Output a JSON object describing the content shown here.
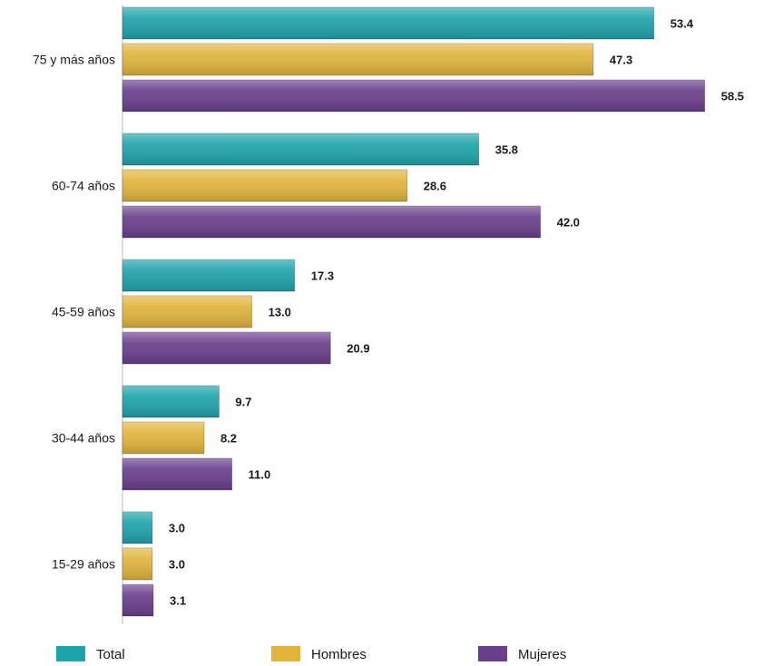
{
  "chart_data": {
    "type": "bar",
    "orientation": "horizontal",
    "categories": [
      "75 y más años",
      "60-74 años",
      "45-59 años",
      "30-44 años",
      "15-29 años"
    ],
    "series": [
      {
        "name": "Total",
        "color": "#1fa3ab",
        "values": [
          53.4,
          35.8,
          17.3,
          9.7,
          3.0
        ],
        "labels": [
          "53.4",
          "35.8",
          "17.3",
          "9.7",
          "3.0"
        ]
      },
      {
        "name": "Hombres",
        "color": "#e0b43c",
        "values": [
          47.3,
          28.6,
          13.0,
          8.2,
          3.0
        ],
        "labels": [
          "47.3",
          "28.6",
          "13.0",
          "8.2",
          "3.0"
        ]
      },
      {
        "name": "Mujeres",
        "color": "#6a3f8c",
        "values": [
          58.5,
          42.0,
          20.9,
          11.0,
          3.1
        ],
        "labels": [
          "58.5",
          "42.0",
          "20.9",
          "11.0",
          "3.1"
        ]
      }
    ],
    "xlim": [
      0,
      58.5
    ],
    "grid": false,
    "legend_position": "bottom"
  }
}
